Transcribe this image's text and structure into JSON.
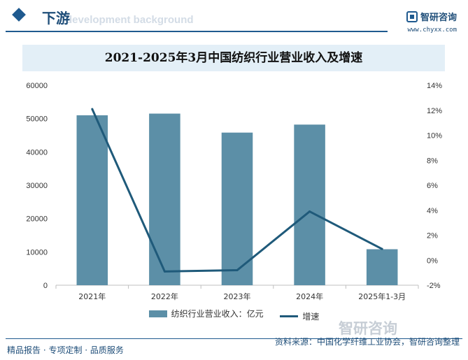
{
  "header": {
    "section_title": "下游",
    "section_subtitle": "development background",
    "brand_name": "智研咨询",
    "brand_url": "www.chyxx.com"
  },
  "watermark_brand": "智研咨询",
  "footer": {
    "left_text": "精品报告 · 专项定制 · 品质服务",
    "source_text": "资料来源：中国化学纤维工业协会，智研咨询整理"
  },
  "colors": {
    "bar": "#5c8fa7",
    "line": "#1f5a7a",
    "accent": "#1f5a8f",
    "title_bg": "#e3eff7"
  },
  "chart_data": {
    "type": "bar",
    "title": "2021-2025年3月中国纺织行业营业收入及增速",
    "categories": [
      "2021年",
      "2022年",
      "2023年",
      "2024年",
      "2025年1-3月"
    ],
    "series": [
      {
        "name": "纺织行业营业收入：亿元",
        "type": "bar",
        "axis": "left",
        "values": [
          51000,
          51500,
          45800,
          48200,
          10800
        ]
      },
      {
        "name": "增速",
        "type": "line",
        "axis": "right",
        "values": [
          12.1,
          -0.9,
          -0.8,
          3.9,
          0.9
        ]
      }
    ],
    "ylim_left": [
      0,
      60000
    ],
    "yticks_left": [
      "0",
      "10000",
      "20000",
      "30000",
      "40000",
      "50000",
      "60000"
    ],
    "ylim_right": [
      -2,
      14
    ],
    "yticks_right": [
      "-2%",
      "0%",
      "2%",
      "4%",
      "6%",
      "8%",
      "10%",
      "12%",
      "14%"
    ],
    "grid": false,
    "legend_position": "bottom"
  }
}
